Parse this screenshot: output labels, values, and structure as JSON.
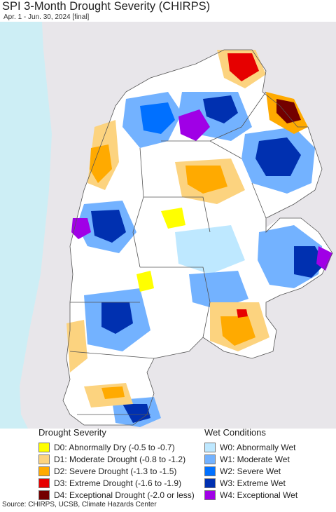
{
  "header": {
    "title": "SPI 3-Month Drought Severity (CHIRPS)",
    "subtitle": "Apr. 1 - Jun. 30, 2024 [final]"
  },
  "legend": {
    "drought": {
      "title": "Drought Severity",
      "items": [
        {
          "label": "D0: Abnormally Dry (-0.5 to -0.7)",
          "color": "#ffff00"
        },
        {
          "label": "D1: Moderate Drought (-0.8 to -1.2)",
          "color": "#fcd37f"
        },
        {
          "label": "D2: Severe Drought (-1.3 to -1.5)",
          "color": "#ffaa00"
        },
        {
          "label": "D3: Extreme Drought (-1.6 to -1.9)",
          "color": "#e60000"
        },
        {
          "label": "D4: Exceptional Drought (-2.0 or less)",
          "color": "#730000"
        }
      ]
    },
    "wet": {
      "title": "Wet Conditions",
      "items": [
        {
          "label": "W0: Abnormally Wet",
          "color": "#bee8ff"
        },
        {
          "label": "W1: Moderate Wet",
          "color": "#73b2ff"
        },
        {
          "label": "W2: Severe Wet",
          "color": "#0070ff"
        },
        {
          "label": "W3: Extreme Wet",
          "color": "#0030b0"
        },
        {
          "label": "W4: Exceptional Wet",
          "color": "#a000e6"
        }
      ]
    }
  },
  "footer": {
    "source": "Source: CHIRPS, UCSB, Climate Hazards Center"
  },
  "map": {
    "colors": {
      "ocean": "#cdeef5",
      "land_outside": "#e8e6ea",
      "land_base": "#ffffff",
      "borders": "#555555"
    }
  }
}
